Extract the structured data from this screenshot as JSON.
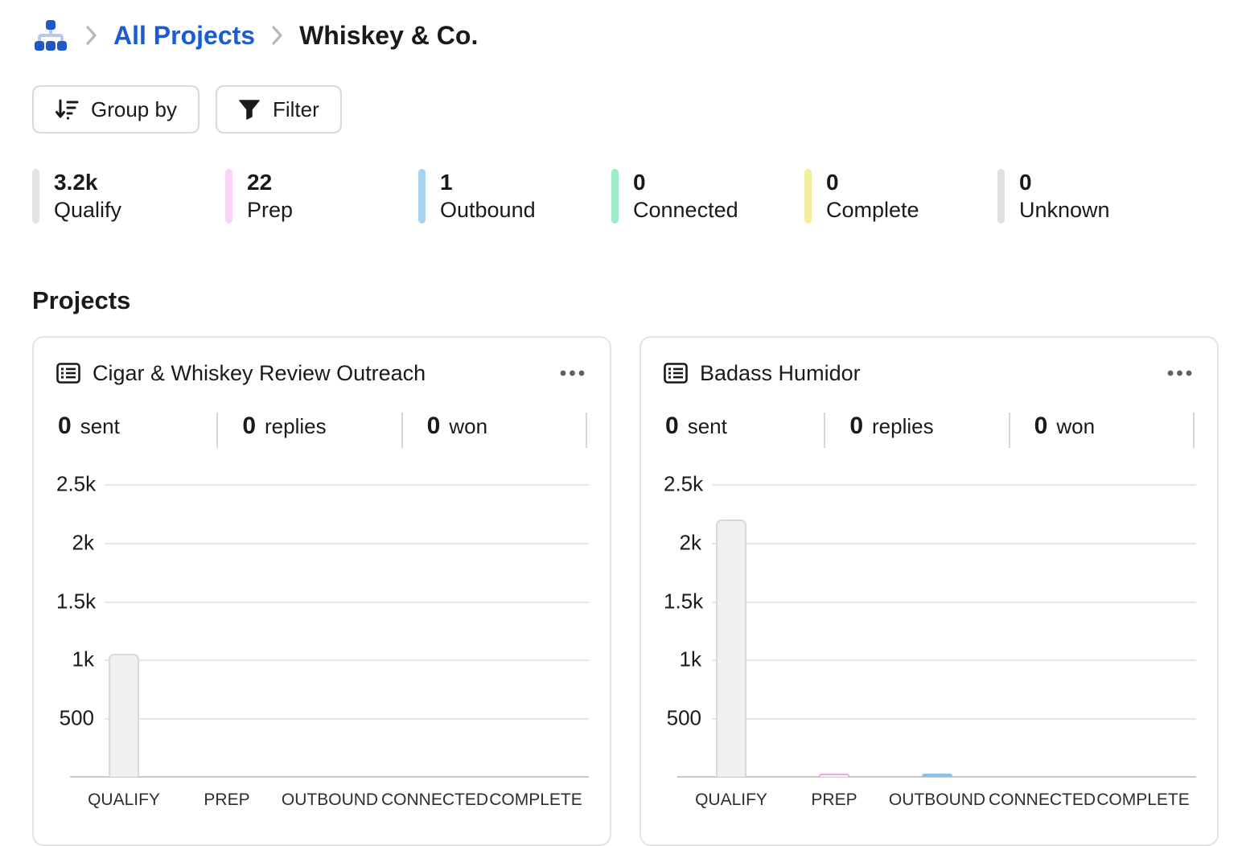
{
  "breadcrumb": {
    "home_icon": "sitemap-icon",
    "items": [
      {
        "label": "All Projects",
        "type": "link"
      },
      {
        "label": "Whiskey & Co.",
        "type": "current"
      }
    ]
  },
  "toolbar": {
    "group_by": {
      "label": "Group by",
      "icon": "sort-descending-icon"
    },
    "filter": {
      "label": "Filter",
      "icon": "funnel-icon"
    }
  },
  "summary_stats": [
    {
      "value": "3.2k",
      "label": "Qualify",
      "color": "#e3e3e3"
    },
    {
      "value": "22",
      "label": "Prep",
      "color": "#fbd5f7"
    },
    {
      "value": "1",
      "label": "Outbound",
      "color": "#a9d2f1"
    },
    {
      "value": "0",
      "label": "Connected",
      "color": "#9debc8"
    },
    {
      "value": "0",
      "label": "Complete",
      "color": "#f3ee9c"
    },
    {
      "value": "0",
      "label": "Unknown",
      "color": "#e0e0e0"
    }
  ],
  "projects_section": {
    "title": "Projects"
  },
  "cards": [
    {
      "title": "Cigar & Whiskey Review Outreach",
      "icon": "list-icon",
      "menu_icon": "ellipsis-icon",
      "stats": [
        {
          "value": "0",
          "label": "sent"
        },
        {
          "value": "0",
          "label": "replies"
        },
        {
          "value": "0",
          "label": "won"
        }
      ]
    },
    {
      "title": "Badass Humidor",
      "icon": "list-icon",
      "menu_icon": "ellipsis-icon",
      "stats": [
        {
          "value": "0",
          "label": "sent"
        },
        {
          "value": "0",
          "label": "replies"
        },
        {
          "value": "0",
          "label": "won"
        }
      ]
    }
  ],
  "chart_data": [
    {
      "card": "Cigar & Whiskey Review Outreach",
      "type": "bar",
      "categories": [
        "QUALIFY",
        "PREP",
        "OUTBOUND",
        "CONNECTED",
        "COMPLETE"
      ],
      "values": [
        1050,
        0,
        0,
        0,
        0
      ],
      "ylim": [
        0,
        2500
      ],
      "yticks": [
        500,
        1000,
        1500,
        2000,
        2500
      ],
      "ytick_labels": [
        "500",
        "1k",
        "1.5k",
        "2k",
        "2.5k"
      ],
      "grid": true,
      "legend": false,
      "xlabel": "",
      "ylabel": ""
    },
    {
      "card": "Badass Humidor",
      "type": "bar",
      "categories": [
        "QUALIFY",
        "PREP",
        "OUTBOUND",
        "CONNECTED",
        "COMPLETE"
      ],
      "values": [
        2200,
        22,
        1,
        0,
        0
      ],
      "ylim": [
        0,
        2500
      ],
      "yticks": [
        500,
        1000,
        1500,
        2000,
        2500
      ],
      "ytick_labels": [
        "500",
        "1k",
        "1.5k",
        "2k",
        "2.5k"
      ],
      "grid": true,
      "legend": false,
      "xlabel": "",
      "ylabel": ""
    }
  ],
  "phase_colors": {
    "QUALIFY": {
      "fill": "#f0f0f0",
      "border": "#d8d8d8"
    },
    "PREP": {
      "fill": "#fdf3fc",
      "border": "#f2a6ee"
    },
    "OUTBOUND": {
      "fill": "#8cc0e8",
      "border": null
    },
    "CONNECTED": {
      "fill": "#9febc8",
      "border": null
    },
    "COMPLETE": {
      "fill": "#f3ee9c",
      "border": null
    }
  },
  "colors": {
    "link_blue": "#1d5bd0",
    "icon_blue": "#2258c5",
    "icon_blue_light": "#b6c9ef",
    "text": "#1a1a1a",
    "gridline": "#e6e6e6",
    "axis_line": "#c9c9c9",
    "card_border": "#e3e3e3",
    "divider": "#d6d6d6"
  }
}
